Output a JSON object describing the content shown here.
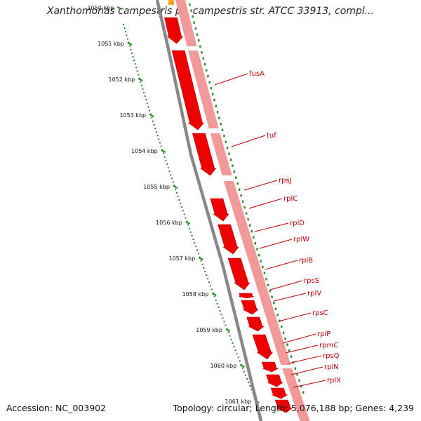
{
  "title": "Xanthomonas campestris pv. campestris str. ATCC 33913, compl...",
  "accession": "Accession: NC_003902",
  "topology": "Topology: circular; Length: 5,076,188 bp; Genes: 4,239",
  "colors": {
    "gene_dark": "#ee0000",
    "gene_light": "#f29a9a",
    "backbone": "#888888",
    "ruler_major": "#2a8a2a",
    "ruler_dots": "#1a7a1a",
    "label": "#c00000",
    "orange_feature": "#f5a623"
  },
  "kbp_labels": [
    "1050 kbp",
    "1051 kbp",
    "1052 kbp",
    "1053 kbp",
    "1054 kbp",
    "1055 kbp",
    "1056 kbp",
    "1057 kbp",
    "1058 kbp",
    "1059 kbp",
    "1060 kbp",
    "1061 kbp"
  ],
  "genes": [
    "fusA",
    "tuf",
    "rpsJ",
    "rplC",
    "rplD",
    "rplW",
    "rplB",
    "rpsS",
    "rplV",
    "rpsC",
    "rplP",
    "rpmC",
    "rpsQ",
    "rplN",
    "rplX"
  ]
}
